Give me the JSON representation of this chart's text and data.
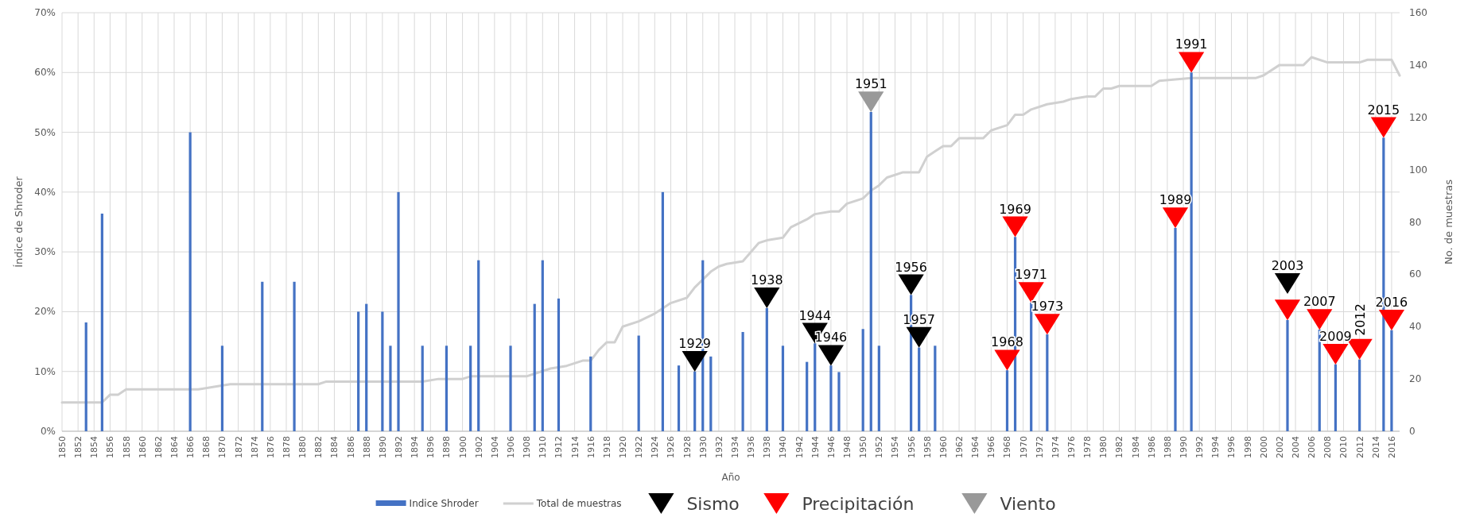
{
  "chart_data": {
    "type": "bar",
    "xlabel": "Año",
    "ylabel": "Índice de Shroder",
    "y2label": "No. de muestras",
    "xlim": [
      1850,
      2017
    ],
    "xticks": [
      1850,
      1852,
      1854,
      1856,
      1858,
      1860,
      1862,
      1864,
      1866,
      1868,
      1870,
      1872,
      1874,
      1876,
      1878,
      1880,
      1882,
      1884,
      1886,
      1888,
      1890,
      1892,
      1894,
      1896,
      1898,
      1900,
      1902,
      1904,
      1906,
      1908,
      1910,
      1912,
      1914,
      1916,
      1918,
      1920,
      1922,
      1924,
      1926,
      1928,
      1930,
      1932,
      1934,
      1936,
      1938,
      1940,
      1942,
      1944,
      1946,
      1948,
      1950,
      1952,
      1954,
      1956,
      1958,
      1960,
      1962,
      1964,
      1966,
      1968,
      1970,
      1972,
      1974,
      1976,
      1978,
      1980,
      1982,
      1984,
      1986,
      1988,
      1990,
      1992,
      1994,
      1996,
      1998,
      2000,
      2002,
      2004,
      2006,
      2008,
      2010,
      2012,
      2014,
      2016
    ],
    "ylim": [
      0,
      70
    ],
    "yticks": [
      {
        "value": 0,
        "label": "0%"
      },
      {
        "value": 10,
        "label": "10%"
      },
      {
        "value": 20,
        "label": "20%"
      },
      {
        "value": 30,
        "label": "30%"
      },
      {
        "value": 40,
        "label": "40%"
      },
      {
        "value": 50,
        "label": "50%"
      },
      {
        "value": 60,
        "label": "60%"
      },
      {
        "value": 70,
        "label": "70%"
      }
    ],
    "y2lim": [
      0,
      160
    ],
    "y2ticks": [
      0,
      20,
      40,
      60,
      80,
      100,
      120,
      140,
      160
    ],
    "grid": true,
    "legend": "bottom",
    "series": [
      {
        "name": "Indice Shroder",
        "color": "#4472c4",
        "x": [
          1853,
          1855,
          1866,
          1870,
          1875,
          1879,
          1887,
          1888,
          1890,
          1891,
          1892,
          1895,
          1898,
          1901,
          1902,
          1906,
          1909,
          1910,
          1912,
          1916,
          1922,
          1925,
          1927,
          1929,
          1930,
          1931,
          1935,
          1938,
          1940,
          1943,
          1944,
          1946,
          1947,
          1950,
          1951,
          1952,
          1956,
          1957,
          1959,
          1968,
          1969,
          1971,
          1973,
          1989,
          1991,
          2003,
          2007,
          2009,
          2012,
          2015,
          2016
        ],
        "values": [
          18.2,
          36.4,
          50,
          14.3,
          25,
          25,
          20,
          21.3,
          20,
          14.3,
          40,
          14.3,
          14.3,
          14.3,
          28.6,
          14.3,
          21.3,
          28.6,
          22.2,
          12.5,
          16,
          40,
          11,
          10,
          28.6,
          12.5,
          16.6,
          20.6,
          14.3,
          11.6,
          14.7,
          11,
          9.9,
          17.1,
          53.4,
          14.3,
          22.8,
          14,
          14.3,
          10.2,
          32.5,
          21.5,
          16.2,
          34,
          60,
          18.6,
          17,
          11.2,
          12,
          49.1,
          16.9
        ]
      },
      {
        "name": "Total de muestras",
        "type": "line",
        "axis": "y2",
        "color": "#d0d0d0",
        "x": [
          1850,
          1855,
          1856,
          1857,
          1858,
          1867,
          1869,
          1871,
          1882,
          1883,
          1895,
          1897,
          1900,
          1901,
          1908,
          1909,
          1911,
          1913,
          1915,
          1916,
          1917,
          1918,
          1919,
          1920,
          1922,
          1924,
          1925,
          1926,
          1928,
          1929,
          1931,
          1932,
          1933,
          1935,
          1937,
          1938,
          1940,
          1941,
          1943,
          1944,
          1946,
          1947,
          1948,
          1950,
          1951,
          1952,
          1953,
          1954,
          1955,
          1957,
          1958,
          1959,
          1960,
          1961,
          1962,
          1965,
          1966,
          1967,
          1968,
          1969,
          1970,
          1971,
          1973,
          1975,
          1976,
          1978,
          1979,
          1980,
          1981,
          1982,
          1986,
          1987,
          1991,
          1999,
          2000,
          2002,
          2005,
          2006,
          2008,
          2012,
          2013,
          2016,
          2017
        ],
        "values": [
          11,
          11,
          14,
          14,
          16,
          16,
          17,
          18,
          18,
          19,
          19,
          20,
          20,
          21,
          21,
          22,
          24,
          25,
          27,
          27,
          31,
          34,
          34,
          40,
          42,
          45,
          47,
          49,
          51,
          55,
          61,
          63,
          64,
          65,
          72,
          73,
          74,
          78,
          81,
          83,
          84,
          84,
          87,
          89,
          92,
          94,
          97,
          98,
          99,
          99,
          105,
          107,
          109,
          109,
          112,
          112,
          115,
          116,
          117,
          121,
          121,
          123,
          125,
          126,
          127,
          128,
          128,
          131,
          131,
          132,
          132,
          134,
          135,
          135,
          136,
          140,
          140,
          143,
          141,
          141,
          142,
          142,
          136
        ]
      },
      {
        "name": "Sismo",
        "type": "scatter",
        "marker": "triangle",
        "color": "#000000",
        "x": [
          1929,
          1938,
          1944,
          1946,
          1956,
          1957,
          2003
        ],
        "values": [
          11.7,
          22.3,
          16.4,
          12.7,
          24.5,
          15.7,
          24.7
        ]
      },
      {
        "name": "Precipitación",
        "type": "scatter",
        "marker": "triangle",
        "color": "#ff0000",
        "x": [
          1968,
          1969,
          1971,
          1973,
          1989,
          1991,
          2003,
          2007,
          2009,
          2012,
          2015,
          2016
        ],
        "values": [
          11.9,
          34.2,
          23.2,
          17.9,
          35.7,
          61.7,
          20.3,
          18.7,
          12.9,
          13.7,
          50.8,
          18.6
        ]
      },
      {
        "name": "Viento",
        "type": "scatter",
        "marker": "triangle",
        "color": "#999999",
        "x": [
          1951
        ],
        "values": [
          55.1
        ]
      }
    ],
    "annotations": [
      {
        "text": "1929",
        "x": 1929,
        "y": 11.7
      },
      {
        "text": "1938",
        "x": 1938,
        "y": 22.3
      },
      {
        "text": "1944",
        "x": 1944,
        "y": 16.4
      },
      {
        "text": "1946",
        "x": 1946,
        "y": 12.7
      },
      {
        "text": "1951",
        "x": 1951,
        "y": 55.1
      },
      {
        "text": "1956",
        "x": 1956,
        "y": 24.5
      },
      {
        "text": "1957",
        "x": 1957,
        "y": 15.7
      },
      {
        "text": "1968",
        "x": 1968,
        "y": 11.9
      },
      {
        "text": "1969",
        "x": 1969,
        "y": 34.2
      },
      {
        "text": "1971",
        "x": 1971,
        "y": 23.2
      },
      {
        "text": "1973",
        "x": 1973,
        "y": 17.9
      },
      {
        "text": "1989",
        "x": 1989,
        "y": 35.7
      },
      {
        "text": "1991",
        "x": 1991,
        "y": 61.7
      },
      {
        "text": "2003",
        "x": 2003,
        "y": 24.7
      },
      {
        "text": "2007",
        "x": 2007,
        "y": 18.7
      },
      {
        "text": "2009",
        "x": 2009,
        "y": 12.9
      },
      {
        "text": "2012",
        "x": 2012,
        "y": 13.7
      },
      {
        "text": "2015",
        "x": 2015,
        "y": 50.8
      },
      {
        "text": "2016",
        "x": 2016,
        "y": 18.6
      }
    ]
  }
}
